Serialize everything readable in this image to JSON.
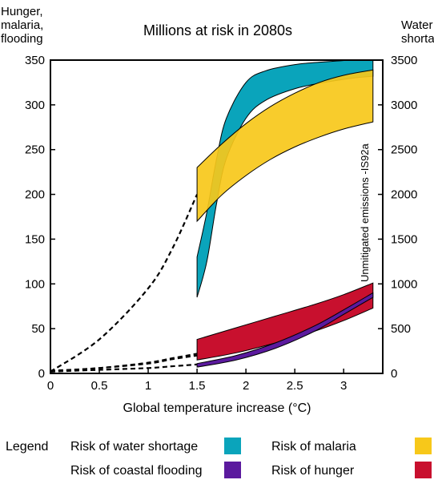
{
  "chart_data": {
    "type": "area",
    "title": "Millions at risk in 2080s",
    "xlabel": "Global temperature increase (°C)",
    "ylabel_left": [
      "Hunger,",
      "malaria,",
      "flooding"
    ],
    "ylabel_right": [
      "Water",
      "shortage"
    ],
    "annotation": "Unmitigated emissions -IS92a",
    "xlim": [
      0,
      3.4
    ],
    "ylim_left": [
      0,
      350
    ],
    "ylim_right": [
      0,
      3500
    ],
    "x_ticks": [
      "0",
      "0.5",
      "1",
      "1.5",
      "2",
      "2.5",
      "3"
    ],
    "y_ticks_left": [
      "0",
      "50",
      "100",
      "150",
      "200",
      "250",
      "300",
      "350"
    ],
    "y_ticks_right": [
      "0",
      "500",
      "1000",
      "1500",
      "2000",
      "2500",
      "3000",
      "3500"
    ],
    "grid": false,
    "legend_placement": "bottom",
    "legend_title": "Legend",
    "series": [
      {
        "name": "Risk of water shortage",
        "color": "#0aa4bb",
        "axis": "right",
        "x": [
          1.5,
          1.6,
          1.7,
          1.8,
          2.0,
          2.2,
          2.5,
          2.8,
          3.1,
          3.3
        ],
        "lower": [
          850,
          1250,
          1900,
          2400,
          2850,
          3050,
          3180,
          3250,
          3300,
          3320
        ],
        "upper": [
          1300,
          1800,
          2400,
          2850,
          3250,
          3380,
          3450,
          3480,
          3500,
          3500
        ],
        "dashed_x": [
          0.0,
          0.5,
          1.0,
          1.25,
          1.5
        ],
        "dashed_y": [
          20,
          380,
          950,
          1400,
          2000
        ]
      },
      {
        "name": "Risk of malaria",
        "color": "#f7c81a",
        "axis": "left",
        "x": [
          1.5,
          1.75,
          2.0,
          2.25,
          2.5,
          2.75,
          3.0,
          3.3
        ],
        "lower": [
          170,
          199,
          221,
          239,
          253,
          264,
          273,
          281
        ],
        "upper": [
          230,
          256,
          279,
          298,
          313,
          325,
          333,
          339
        ],
        "dashed_x": [
          0.0,
          0.5,
          1.0,
          1.25,
          1.5
        ],
        "dashed_y": [
          2,
          6,
          11,
          16,
          20
        ]
      },
      {
        "name": "Risk of hunger",
        "color": "#c8102e",
        "axis": "left",
        "x": [
          1.5,
          1.9,
          2.3,
          2.7,
          3.0,
          3.3
        ],
        "lower": [
          15,
          23,
          34,
          47,
          59,
          73
        ],
        "upper": [
          38,
          51,
          64,
          77,
          88,
          101
        ],
        "dashed_x": [
          0.0,
          0.5,
          1.0,
          1.25,
          1.5
        ],
        "dashed_y": [
          3,
          6,
          12,
          17,
          22
        ]
      },
      {
        "name": "Risk of coastal flooding",
        "color": "#5b1a9e",
        "axis": "left",
        "x": [
          1.5,
          1.9,
          2.3,
          2.7,
          3.0,
          3.3
        ],
        "lower": [
          7,
          15,
          28,
          47,
          66,
          85
        ],
        "upper": [
          11,
          20,
          34,
          53,
          71,
          90
        ],
        "dashed_x": [
          0.0,
          0.5,
          1.0,
          1.25,
          1.5
        ],
        "dashed_y": [
          2,
          4,
          6,
          8,
          10
        ]
      }
    ]
  }
}
